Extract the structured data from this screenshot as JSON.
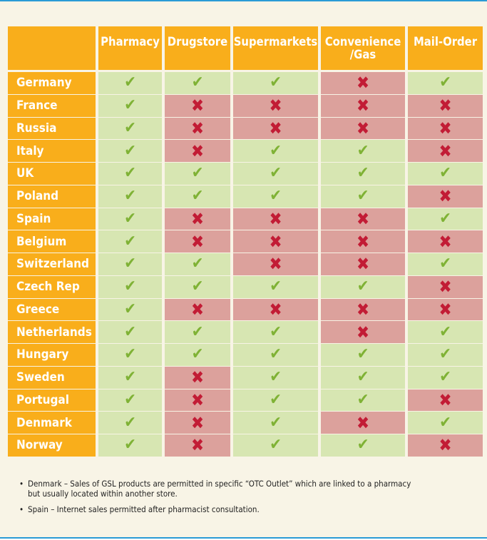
{
  "columns": [
    "Pharmacy",
    "Drugstore",
    "Supermarkets",
    "Convenience\n/Gas",
    "Mail-Order"
  ],
  "symbols": {
    "yes": "✔",
    "no": "✖"
  },
  "colors": {
    "header": "#f9ae1b",
    "permitted": "#d7e6b2",
    "not_permitted": "#dca19c",
    "check": "#7fb235",
    "cross": "#c21c35",
    "frame": "#2a9bd6"
  },
  "rows": [
    {
      "country": "Germany",
      "values": [
        true,
        true,
        true,
        false,
        true
      ]
    },
    {
      "country": "France",
      "values": [
        true,
        false,
        false,
        false,
        false
      ]
    },
    {
      "country": "Russia",
      "values": [
        true,
        false,
        false,
        false,
        false
      ]
    },
    {
      "country": "Italy",
      "values": [
        true,
        false,
        true,
        true,
        false
      ]
    },
    {
      "country": "UK",
      "values": [
        true,
        true,
        true,
        true,
        true
      ]
    },
    {
      "country": "Poland",
      "values": [
        true,
        true,
        true,
        true,
        false
      ]
    },
    {
      "country": "Spain",
      "values": [
        true,
        false,
        false,
        false,
        true
      ]
    },
    {
      "country": "Belgium",
      "values": [
        true,
        false,
        false,
        false,
        false
      ]
    },
    {
      "country": "Switzerland",
      "values": [
        true,
        true,
        false,
        false,
        true
      ]
    },
    {
      "country": "Czech Rep",
      "values": [
        true,
        true,
        true,
        true,
        false
      ]
    },
    {
      "country": "Greece",
      "values": [
        true,
        false,
        false,
        false,
        false
      ]
    },
    {
      "country": "Netherlands",
      "values": [
        true,
        true,
        true,
        false,
        true
      ]
    },
    {
      "country": "Hungary",
      "values": [
        true,
        true,
        true,
        true,
        true
      ]
    },
    {
      "country": "Sweden",
      "values": [
        true,
        false,
        true,
        true,
        true
      ]
    },
    {
      "country": "Portugal",
      "values": [
        true,
        false,
        true,
        true,
        false
      ]
    },
    {
      "country": "Denmark",
      "values": [
        true,
        false,
        true,
        false,
        true
      ]
    },
    {
      "country": "Norway",
      "values": [
        true,
        false,
        true,
        true,
        false
      ]
    }
  ],
  "notes": [
    "Denmark – Sales of GSL products are permitted in specific “OTC Outlet” which are linked to a pharmacy but usually located within another store.",
    "Spain – Internet sales permitted after pharmacist consultation."
  ]
}
